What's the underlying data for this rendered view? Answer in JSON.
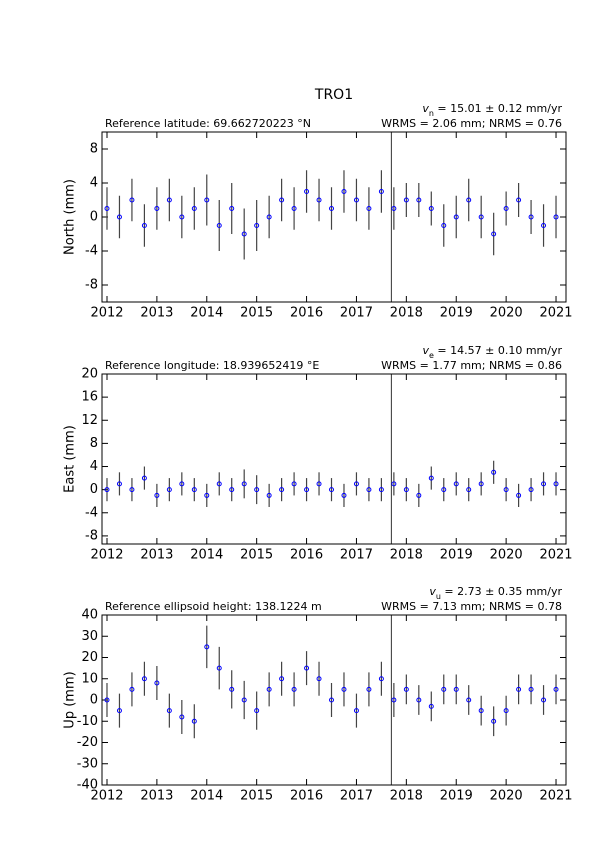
{
  "chart_data": [
    {
      "type": "errorbar",
      "title": "TRO1",
      "ylabel": "North (mm)",
      "reference": "Reference latitude: 69.662720223 °N",
      "velocity_symbol": "v",
      "velocity_subscript": "n",
      "velocity_text": " = 15.01 ± 0.12 mm/yr",
      "stats": "WRMS = 2.06 mm; NRMS = 0.76",
      "xlim": [
        2011.9,
        2021.2
      ],
      "xticks": [
        2012,
        2013,
        2014,
        2015,
        2016,
        2017,
        2018,
        2019,
        2020,
        2021
      ],
      "ylim": [
        -10,
        10
      ],
      "yticks": [
        -8,
        -4,
        0,
        4,
        8
      ],
      "breaks": [
        2017.7
      ],
      "color": "#0000ff",
      "error_color": "#444444",
      "x": [
        2012,
        2012.25,
        2012.5,
        2012.75,
        2013,
        2013.25,
        2013.5,
        2013.75,
        2014,
        2014.25,
        2014.5,
        2014.75,
        2015,
        2015.25,
        2015.5,
        2015.75,
        2016,
        2016.25,
        2016.5,
        2016.75,
        2017,
        2017.25,
        2017.5,
        2017.75,
        2018,
        2018.25,
        2018.5,
        2018.75,
        2019,
        2019.25,
        2019.5,
        2019.75,
        2020,
        2020.25,
        2020.5,
        2020.75,
        2021
      ],
      "values": [
        1,
        0,
        2,
        -1,
        1,
        2,
        0,
        1,
        2,
        -1,
        1,
        -2,
        -1,
        0,
        2,
        1,
        3,
        2,
        1,
        3,
        2,
        1,
        3,
        1,
        2,
        2,
        1,
        -1,
        0,
        2,
        0,
        -2,
        1,
        2,
        0,
        -1,
        0
      ],
      "errors": [
        2.5,
        2.5,
        2.5,
        2.5,
        2.5,
        2.5,
        2.5,
        2.5,
        3,
        3,
        3,
        3,
        3,
        2.5,
        2.5,
        2.5,
        2.5,
        2.5,
        2.5,
        2.5,
        2.5,
        2.5,
        2.5,
        2.5,
        2,
        2,
        2,
        2.5,
        2.5,
        2.5,
        2.5,
        2.5,
        2,
        2,
        2,
        2.5,
        2.5
      ]
    },
    {
      "type": "errorbar",
      "ylabel": "East (mm)",
      "reference": "Reference longitude: 18.939652419 °E",
      "velocity_symbol": "v",
      "velocity_subscript": "e",
      "velocity_text": " = 14.57 ± 0.10 mm/yr",
      "stats": "WRMS = 1.77 mm; NRMS = 0.86",
      "xlim": [
        2011.9,
        2021.2
      ],
      "xticks": [
        2012,
        2013,
        2014,
        2015,
        2016,
        2017,
        2018,
        2019,
        2020,
        2021
      ],
      "ylim": [
        -9.4,
        20
      ],
      "yticks": [
        -8,
        -4,
        0,
        4,
        8,
        12,
        16,
        20
      ],
      "breaks": [
        2017.7
      ],
      "color": "#0000ff",
      "error_color": "#444444",
      "x": [
        2012,
        2012.25,
        2012.5,
        2012.75,
        2013,
        2013.25,
        2013.5,
        2013.75,
        2014,
        2014.25,
        2014.5,
        2014.75,
        2015,
        2015.25,
        2015.5,
        2015.75,
        2016,
        2016.25,
        2016.5,
        2016.75,
        2017,
        2017.25,
        2017.5,
        2017.75,
        2018,
        2018.25,
        2018.5,
        2018.75,
        2019,
        2019.25,
        2019.5,
        2019.75,
        2020,
        2020.25,
        2020.5,
        2020.75,
        2021
      ],
      "values": [
        0,
        1,
        0,
        2,
        -1,
        0,
        1,
        0,
        -1,
        1,
        0,
        1,
        0,
        -1,
        0,
        1,
        0,
        1,
        0,
        -1,
        1,
        0,
        0,
        1,
        0,
        -1,
        2,
        0,
        1,
        0,
        1,
        3,
        0,
        -1,
        0,
        1,
        1
      ],
      "errors": [
        2,
        2,
        2,
        2,
        2,
        2,
        2,
        2,
        2,
        2,
        2,
        2.5,
        2.5,
        2,
        2,
        2,
        2,
        2,
        2,
        2,
        2,
        2,
        2,
        2,
        2,
        2,
        2,
        2,
        2,
        2,
        2,
        2,
        2,
        2,
        2,
        2,
        2
      ]
    },
    {
      "type": "errorbar",
      "ylabel": "Up (mm)",
      "reference": "Reference ellipsoid height: 138.1224 m",
      "velocity_symbol": "v",
      "velocity_subscript": "u",
      "velocity_text": " = 2.73 ± 0.35 mm/yr",
      "stats": "WRMS = 7.13 mm; NRMS = 0.78",
      "xlim": [
        2011.9,
        2021.2
      ],
      "xticks": [
        2012,
        2013,
        2014,
        2015,
        2016,
        2017,
        2018,
        2019,
        2020,
        2021
      ],
      "ylim": [
        -40,
        40
      ],
      "yticks": [
        -40,
        -30,
        -20,
        -10,
        0,
        10,
        20,
        30,
        40
      ],
      "breaks": [
        2017.7
      ],
      "color": "#0000ff",
      "error_color": "#444444",
      "x": [
        2012,
        2012.25,
        2012.5,
        2012.75,
        2013,
        2013.25,
        2013.5,
        2013.75,
        2014,
        2014.25,
        2014.5,
        2014.75,
        2015,
        2015.25,
        2015.5,
        2015.75,
        2016,
        2016.25,
        2016.5,
        2016.75,
        2017,
        2017.25,
        2017.5,
        2017.75,
        2018,
        2018.25,
        2018.5,
        2018.75,
        2019,
        2019.25,
        2019.5,
        2019.75,
        2020,
        2020.25,
        2020.5,
        2020.75,
        2021
      ],
      "values": [
        0,
        -5,
        5,
        10,
        8,
        -5,
        -8,
        -10,
        25,
        15,
        5,
        0,
        -5,
        5,
        10,
        5,
        15,
        10,
        0,
        5,
        -5,
        5,
        10,
        0,
        5,
        0,
        -3,
        5,
        5,
        0,
        -5,
        -10,
        -5,
        5,
        5,
        0,
        5
      ],
      "errors": [
        8,
        8,
        8,
        8,
        8,
        8,
        8,
        8,
        10,
        10,
        9,
        9,
        9,
        8,
        8,
        8,
        8,
        8,
        8,
        8,
        8,
        8,
        8,
        8,
        7,
        7,
        7,
        7,
        7,
        7,
        7,
        7,
        7,
        7,
        7,
        7,
        7
      ]
    }
  ]
}
